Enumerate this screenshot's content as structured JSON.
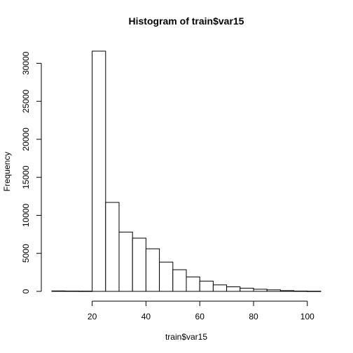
{
  "chart_data": {
    "type": "bar",
    "title": "Histogram of train$var15",
    "xlabel": "train$var15",
    "ylabel": "Frequency",
    "xlim": [
      5,
      105
    ],
    "ylim": [
      0,
      31600
    ],
    "bins": [
      {
        "start": 5,
        "end": 10,
        "count": 60
      },
      {
        "start": 10,
        "end": 15,
        "count": 40
      },
      {
        "start": 15,
        "end": 20,
        "count": 30
      },
      {
        "start": 20,
        "end": 25,
        "count": 31600
      },
      {
        "start": 25,
        "end": 30,
        "count": 11700
      },
      {
        "start": 30,
        "end": 35,
        "count": 7800
      },
      {
        "start": 35,
        "end": 40,
        "count": 7000
      },
      {
        "start": 40,
        "end": 45,
        "count": 5600
      },
      {
        "start": 45,
        "end": 50,
        "count": 3850
      },
      {
        "start": 50,
        "end": 55,
        "count": 2850
      },
      {
        "start": 55,
        "end": 60,
        "count": 1900
      },
      {
        "start": 60,
        "end": 65,
        "count": 1350
      },
      {
        "start": 65,
        "end": 70,
        "count": 850
      },
      {
        "start": 70,
        "end": 75,
        "count": 600
      },
      {
        "start": 75,
        "end": 80,
        "count": 420
      },
      {
        "start": 80,
        "end": 85,
        "count": 280
      },
      {
        "start": 85,
        "end": 90,
        "count": 200
      },
      {
        "start": 90,
        "end": 95,
        "count": 100
      },
      {
        "start": 95,
        "end": 100,
        "count": 40
      },
      {
        "start": 100,
        "end": 105,
        "count": 20
      }
    ],
    "x_ticks": [
      20,
      40,
      60,
      80,
      100
    ],
    "y_ticks": [
      0,
      5000,
      10000,
      15000,
      20000,
      25000,
      30000
    ],
    "grid": false,
    "legend": "none"
  }
}
